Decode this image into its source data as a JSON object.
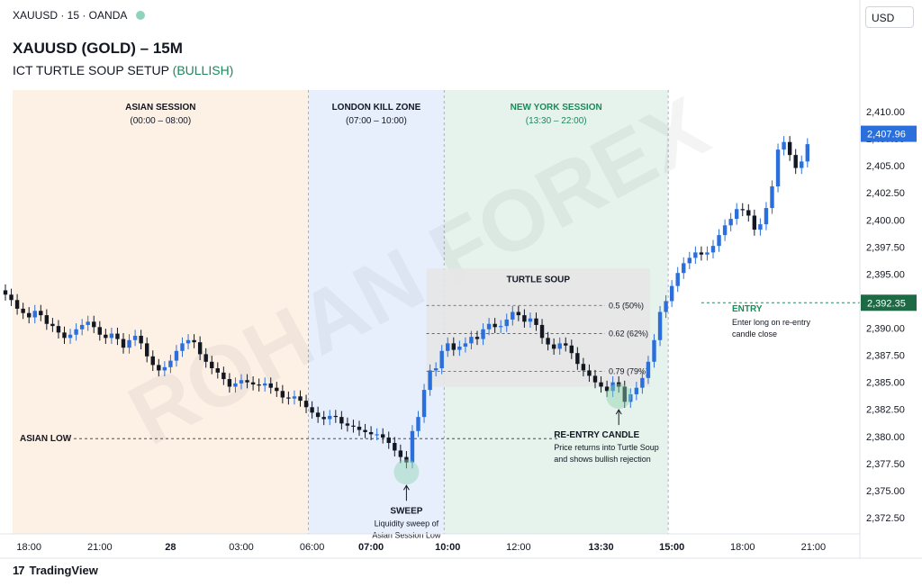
{
  "header": {
    "symbol_line": "XAUUSD · 15 · OANDA",
    "title": "XAUUSD (GOLD) – 15M",
    "subtitle_main": "ICT TURTLE SOUP SETUP",
    "subtitle_bias": "(BULLISH)",
    "currency": "USD"
  },
  "footer": {
    "brand": "TradingView",
    "logo": "17"
  },
  "watermark": "ROHAN FOREX",
  "colors": {
    "bull": "#2a6fdb",
    "bear": "#131722",
    "accent_green": "#1a8a5a",
    "asian_bg": "#fdf1e6",
    "london_bg": "#e7effd",
    "ny_bg": "#e5f3ec",
    "soup_bg": "#e6e6e6"
  },
  "chart_data": {
    "type": "candlestick",
    "title": "XAUUSD (GOLD) – 15M",
    "ylim": [
      2371,
      2412
    ],
    "y_ticks": [
      "2,372.50",
      "2,375.00",
      "2,377.50",
      "2,380.00",
      "2,382.50",
      "2,385.00",
      "2,387.50",
      "2,390.00",
      "2,392.50",
      "2,395.00",
      "2,397.50",
      "2,400.00",
      "2,402.50",
      "2,405.00",
      "2,407.50",
      "2,410.00"
    ],
    "y_tick_values": [
      2372.5,
      2375,
      2377.5,
      2380,
      2382.5,
      2385,
      2387.5,
      2390,
      2392.5,
      2395,
      2397.5,
      2400,
      2402.5,
      2405,
      2407.5,
      2410
    ],
    "x_ticks": [
      {
        "label": "18:00",
        "index": 4
      },
      {
        "label": "21:00",
        "index": 16
      },
      {
        "label": "28",
        "index": 28,
        "bold": true
      },
      {
        "label": "03:00",
        "index": 40
      },
      {
        "label": "06:00",
        "index": 52
      },
      {
        "label": "07:00",
        "index": 62,
        "bold": true
      },
      {
        "label": "10:00",
        "index": 75,
        "bold": true
      },
      {
        "label": "12:00",
        "index": 87
      },
      {
        "label": "13:30",
        "index": 101,
        "bold": true
      },
      {
        "label": "15:00",
        "index": 113,
        "bold": true
      },
      {
        "label": "18:00",
        "index": 125
      },
      {
        "label": "21:00",
        "index": 137
      }
    ],
    "candles_close": [
      2393.1,
      2392.6,
      2391.8,
      2391.4,
      2391.0,
      2391.6,
      2391.2,
      2390.4,
      2390.2,
      2389.6,
      2389.1,
      2389.4,
      2389.9,
      2390.3,
      2390.6,
      2390.1,
      2389.4,
      2389.1,
      2389.5,
      2389.0,
      2388.2,
      2388.9,
      2389.3,
      2388.6,
      2387.4,
      2386.6,
      2386.1,
      2386.4,
      2387.0,
      2387.9,
      2388.6,
      2388.9,
      2388.7,
      2387.6,
      2386.9,
      2386.3,
      2385.9,
      2385.3,
      2384.6,
      2384.9,
      2385.2,
      2385.0,
      2384.8,
      2384.7,
      2384.9,
      2384.5,
      2384.2,
      2383.6,
      2383.5,
      2383.7,
      2383.3,
      2382.7,
      2382.2,
      2381.8,
      2381.6,
      2381.9,
      2381.8,
      2381.2,
      2381.0,
      2380.9,
      2380.6,
      2380.4,
      2380.2,
      2380.2,
      2379.9,
      2379.4,
      2378.7,
      2378.1,
      2377.6,
      2380.5,
      2381.8,
      2384.3,
      2386.1,
      2386.3,
      2387.9,
      2388.6,
      2388.0,
      2388.3,
      2388.6,
      2389.2,
      2389.0,
      2389.9,
      2390.4,
      2390.1,
      2390.2,
      2390.8,
      2391.5,
      2391.2,
      2390.6,
      2390.9,
      2390.3,
      2389.1,
      2388.5,
      2388.1,
      2388.6,
      2388.4,
      2387.7,
      2386.7,
      2386.1,
      2385.6,
      2385.0,
      2384.6,
      2384.2,
      2385.0,
      2384.6,
      2383.2,
      2383.9,
      2384.5,
      2385.4,
      2386.9,
      2388.9,
      2391.5,
      2392.5,
      2393.9,
      2395.1,
      2396.0,
      2396.5,
      2397.0,
      2396.8,
      2397.0,
      2397.6,
      2398.6,
      2399.5,
      2400.1,
      2401.0,
      2400.9,
      2400.4,
      2399.1,
      2399.6,
      2401.1,
      2403.1,
      2406.5,
      2407.2,
      2406.0,
      2404.8,
      2405.4,
      2407.0
    ],
    "sessions": [
      {
        "label": "ASIAN SESSION",
        "time": "(00:00 – 08:00)",
        "start_index": 0,
        "end_index": 52
      },
      {
        "label": "LONDON KILL ZONE",
        "time": "(07:00 – 10:00)",
        "start_index": 52,
        "end_index": 75
      },
      {
        "label": "NEW YORK SESSION",
        "time": "(13:30 – 22:00)",
        "start_index": 75,
        "end_index": 113
      }
    ],
    "zone": {
      "label": "TURTLE SOUP",
      "price_top": 2395.5,
      "price_bottom": 2384.6
    },
    "fib_levels": [
      {
        "label": "0.5 (50%)",
        "price": 2392.1
      },
      {
        "label": "0.62 (62%)",
        "price": 2389.5
      },
      {
        "label": "0.79 (79%)",
        "price": 2386.0
      }
    ],
    "asian_low": {
      "label": "ASIAN LOW",
      "price": 2379.8
    },
    "entry": {
      "label": "ENTRY",
      "desc1": "Enter long on re-entry",
      "desc2": "candle close",
      "price": 2392.35,
      "price_label": "2,392.35"
    },
    "last_price": {
      "value": 2407.96,
      "label": "2,407.96"
    },
    "annotations": [
      {
        "id": "sweep",
        "title": "SWEEP",
        "line1": "Liquidity sweep of",
        "line2": "Asian Session Low",
        "index": 68
      },
      {
        "id": "reentry",
        "title": "RE-ENTRY CANDLE",
        "line1": "Price returns into Turtle Soup",
        "line2": "and shows bullish rejection",
        "index": 104
      }
    ]
  }
}
